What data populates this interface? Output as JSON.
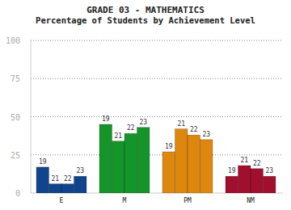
{
  "chart_data": {
    "type": "bar",
    "title": "GRADE 03 - MATHEMATICS",
    "subtitle": "Percentage of Students by Achievement Level",
    "categories": [
      "E",
      "M",
      "PM",
      "NM"
    ],
    "colors": [
      "#11448c",
      "#15942a",
      "#de870f",
      "#a00f2e"
    ],
    "series": [
      {
        "name": "19",
        "values": [
          17,
          45,
          27,
          11
        ]
      },
      {
        "name": "21",
        "values": [
          6,
          34,
          42,
          18
        ]
      },
      {
        "name": "22",
        "values": [
          6,
          39,
          38,
          16
        ]
      },
      {
        "name": "23",
        "values": [
          11,
          43,
          35,
          11
        ]
      }
    ],
    "ylim": [
      0,
      100
    ],
    "yticks": [
      0,
      25,
      50,
      75,
      100
    ],
    "grid": true
  }
}
